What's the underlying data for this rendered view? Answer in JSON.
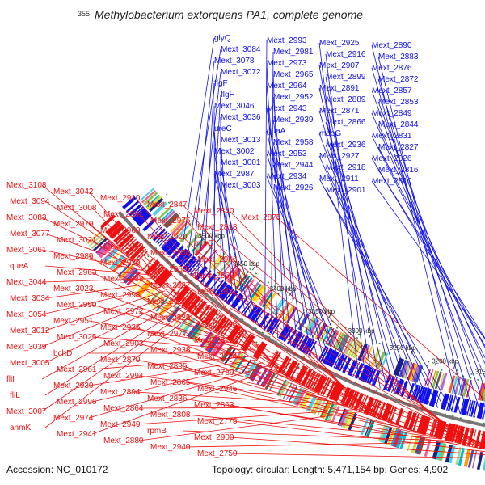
{
  "header": {
    "title": "Methylobacterium extorquens PA1, complete genome",
    "start_label": "355"
  },
  "footer": {
    "accession": "Accession: NC_010172",
    "topology": "Topology: circular; Length: 5,471,154 bp; Genes: 4,902"
  },
  "colors": {
    "forward": "#1010ee",
    "reverse": "#ee1010",
    "backbone": "#777777",
    "gc_marks": "#2a8a2a"
  },
  "ticks": [
    {
      "label": "3500 kbp"
    },
    {
      "label": "3450 kbp"
    },
    {
      "label": "3400 kbp"
    },
    {
      "label": "3350 kbp"
    },
    {
      "label": "3300 kbp"
    },
    {
      "label": "3250 kbp"
    },
    {
      "label": "3200 kbp"
    },
    {
      "label": "3150 kbp"
    },
    {
      "label": "3100 kbp"
    }
  ],
  "forward_genes": [
    "glyQ",
    "Mext_3084",
    "Mext_3078",
    "Mext_3072",
    "flgF",
    "flgH",
    "Mext_3046",
    "Mext_3036",
    "ureC",
    "Mext_3013",
    "Mext_3002",
    "Mext_3001",
    "Mext_2987",
    "Mext_3003",
    "Mext_2993",
    "Mext_2981",
    "Mext_2973",
    "Mext_2965",
    "Mext_2964",
    "Mext_2952",
    "Mext_2943",
    "Mext_2939",
    "guaA",
    "Mext_2958",
    "Mext_2953",
    "Mext_2944",
    "Mext_2934",
    "Mext_2926",
    "Mext_2925",
    "Mext_2916",
    "Mext_2907",
    "Mext_2899",
    "Mext_2891",
    "Mext_2889",
    "Mext_2871",
    "Mext_2866",
    "mdoG",
    "Mext_2936",
    "Mext_2927",
    "Mext_2918",
    "Mext_2911",
    "Mext_2901",
    "Mext_2890",
    "Mext_2883",
    "Mext_2876",
    "Mext_2872",
    "Mext_2857",
    "Mext_2853",
    "Mext_2849",
    "Mext_2844",
    "Mext_2831",
    "Mext_2827",
    "Mext_2826",
    "Mext_2816",
    "Mext_2810"
  ],
  "reverse_genes": [
    "Mext_3108",
    "Mext_3094",
    "Mext_3083",
    "Mext_3077",
    "Mext_3061",
    "queA",
    "Mext_3044",
    "Mext_3034",
    "Mext_3054",
    "Mext_3012",
    "Mext_3039",
    "Mext_3005",
    "fliI",
    "fliL",
    "Mext_3007",
    "anmK",
    "Mext_3042",
    "Mext_3008",
    "Mext_2979",
    "Mext_3021",
    "Mext_2989",
    "Mext_2963",
    "Mext_3023",
    "Mext_2990",
    "Mext_2951",
    "Mext_3025",
    "bchD",
    "Mext_2961",
    "Mext_2930",
    "Mext_2996",
    "Mext_2974",
    "Mext_2941",
    "Mext_2910",
    "Mext_2991",
    "Mext_2960",
    "Mext_2962",
    "Mext_2929",
    "Mext_2888",
    "Mext_2998",
    "Mext_2972",
    "Mext_2935",
    "Mext_2903",
    "Mext_2870",
    "Mext_2994",
    "Mext_2894",
    "Mext_2864",
    "Mext_2949",
    "Mext_2880",
    "Mext_2847",
    "Mext_2975",
    "Mext_2920",
    "Mext_2850",
    "Mext_2968",
    "Mext_2937",
    "Mext_2905",
    "Mext_2825",
    "Mext_2977",
    "Mext_2938",
    "Mext_2895",
    "Mext_2865",
    "Mext_2836",
    "Mext_2808",
    "rpmB",
    "Mext_2940",
    "Mext_2840",
    "Mext_2813",
    "murC",
    "Mext_2906",
    "Mext_2869",
    "Mext_2837",
    "lysK",
    "Mext_2898",
    "Mext_2823",
    "Mext_2794",
    "Mext_2789",
    "Mext_2945",
    "Mext_2863",
    "Mext_2775",
    "Mext_2900",
    "Mext_2750",
    "Mext_2875"
  ]
}
